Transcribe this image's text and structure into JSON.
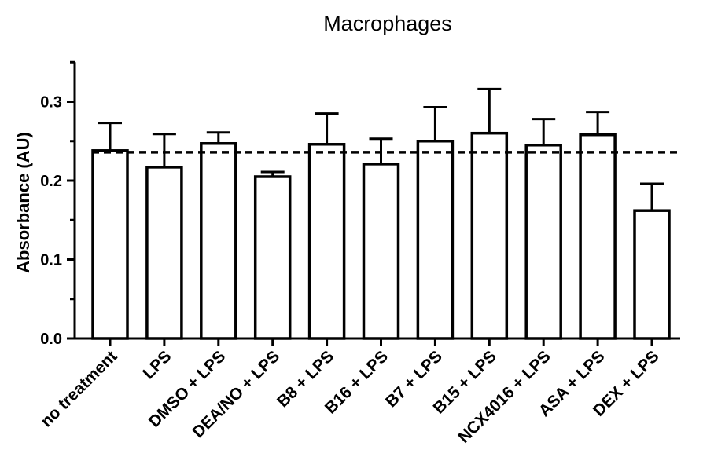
{
  "chart_data": {
    "type": "bar",
    "title": "Macrophages",
    "ylabel": "Absorbance (AU)",
    "xlabel": "",
    "ylim": [
      0,
      0.35
    ],
    "yticks": [
      "0.0",
      "0.1",
      "0.2",
      "0.3"
    ],
    "categories": [
      "no treatment",
      "LPS",
      "DMSO + LPS",
      "DEA/NO + LPS",
      "B8 + LPS",
      "B16 + LPS",
      "B7 + LPS",
      "B15 + LPS",
      "NCX4016 + LPS",
      "ASA + LPS",
      "DEX + LPS"
    ],
    "values": [
      0.238,
      0.217,
      0.247,
      0.205,
      0.246,
      0.221,
      0.25,
      0.26,
      0.245,
      0.258,
      0.162
    ],
    "error_upper": [
      0.273,
      0.259,
      0.261,
      0.211,
      0.285,
      0.253,
      0.293,
      0.316,
      0.278,
      0.287,
      0.196
    ],
    "reference_line": 0.236,
    "bar_fill": "#ffffff",
    "bar_stroke": "#000000",
    "grid": false
  }
}
